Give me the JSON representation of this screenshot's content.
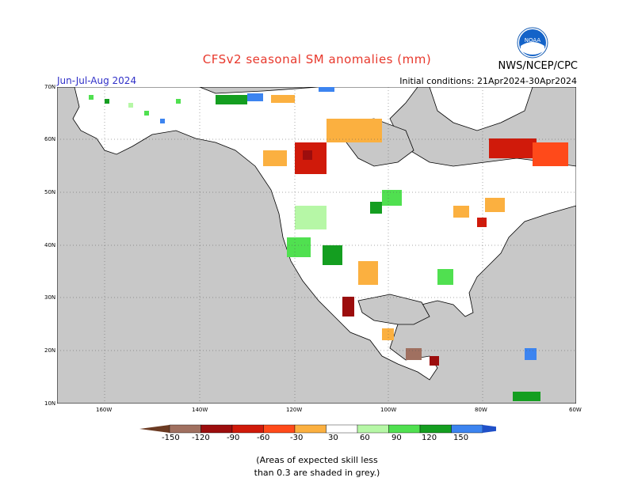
{
  "title": "CFSv2 seasonal SM anomalies (mm)",
  "season": "Jun-Jul-Aug 2024",
  "initial_conditions": "Initial conditions: 21Apr2024-30Apr2024",
  "agency": "NWS/NCEP/CPC",
  "logo_text": "NOAA",
  "lat_labels": [
    "70N",
    "60N",
    "50N",
    "40N",
    "30N",
    "20N",
    "10N"
  ],
  "lon_labels": [
    "160W",
    "140W",
    "120W",
    "100W",
    "80W",
    "60W"
  ],
  "legend": {
    "labels": [
      "-150",
      "-120",
      "-90",
      "-60",
      "-30",
      "30",
      "60",
      "90",
      "120",
      "150"
    ],
    "colors": [
      "#6b3a22",
      "#a07060",
      "#9c0d0d",
      "#d01a0a",
      "#ff4a1a",
      "#fbb040",
      "#ffffff",
      "#b6f7a6",
      "#50e050",
      "#149e20",
      "#3c84f0",
      "#2050c8"
    ]
  },
  "note_line1": "(Areas of expected skill less",
  "note_line2": "than 0.3 are shaded in grey.)",
  "colors": {
    "ocean": "#ffffff",
    "land_unskilled": "#c8c8c8",
    "title": "#e8382c",
    "season": "#3030c8"
  }
}
